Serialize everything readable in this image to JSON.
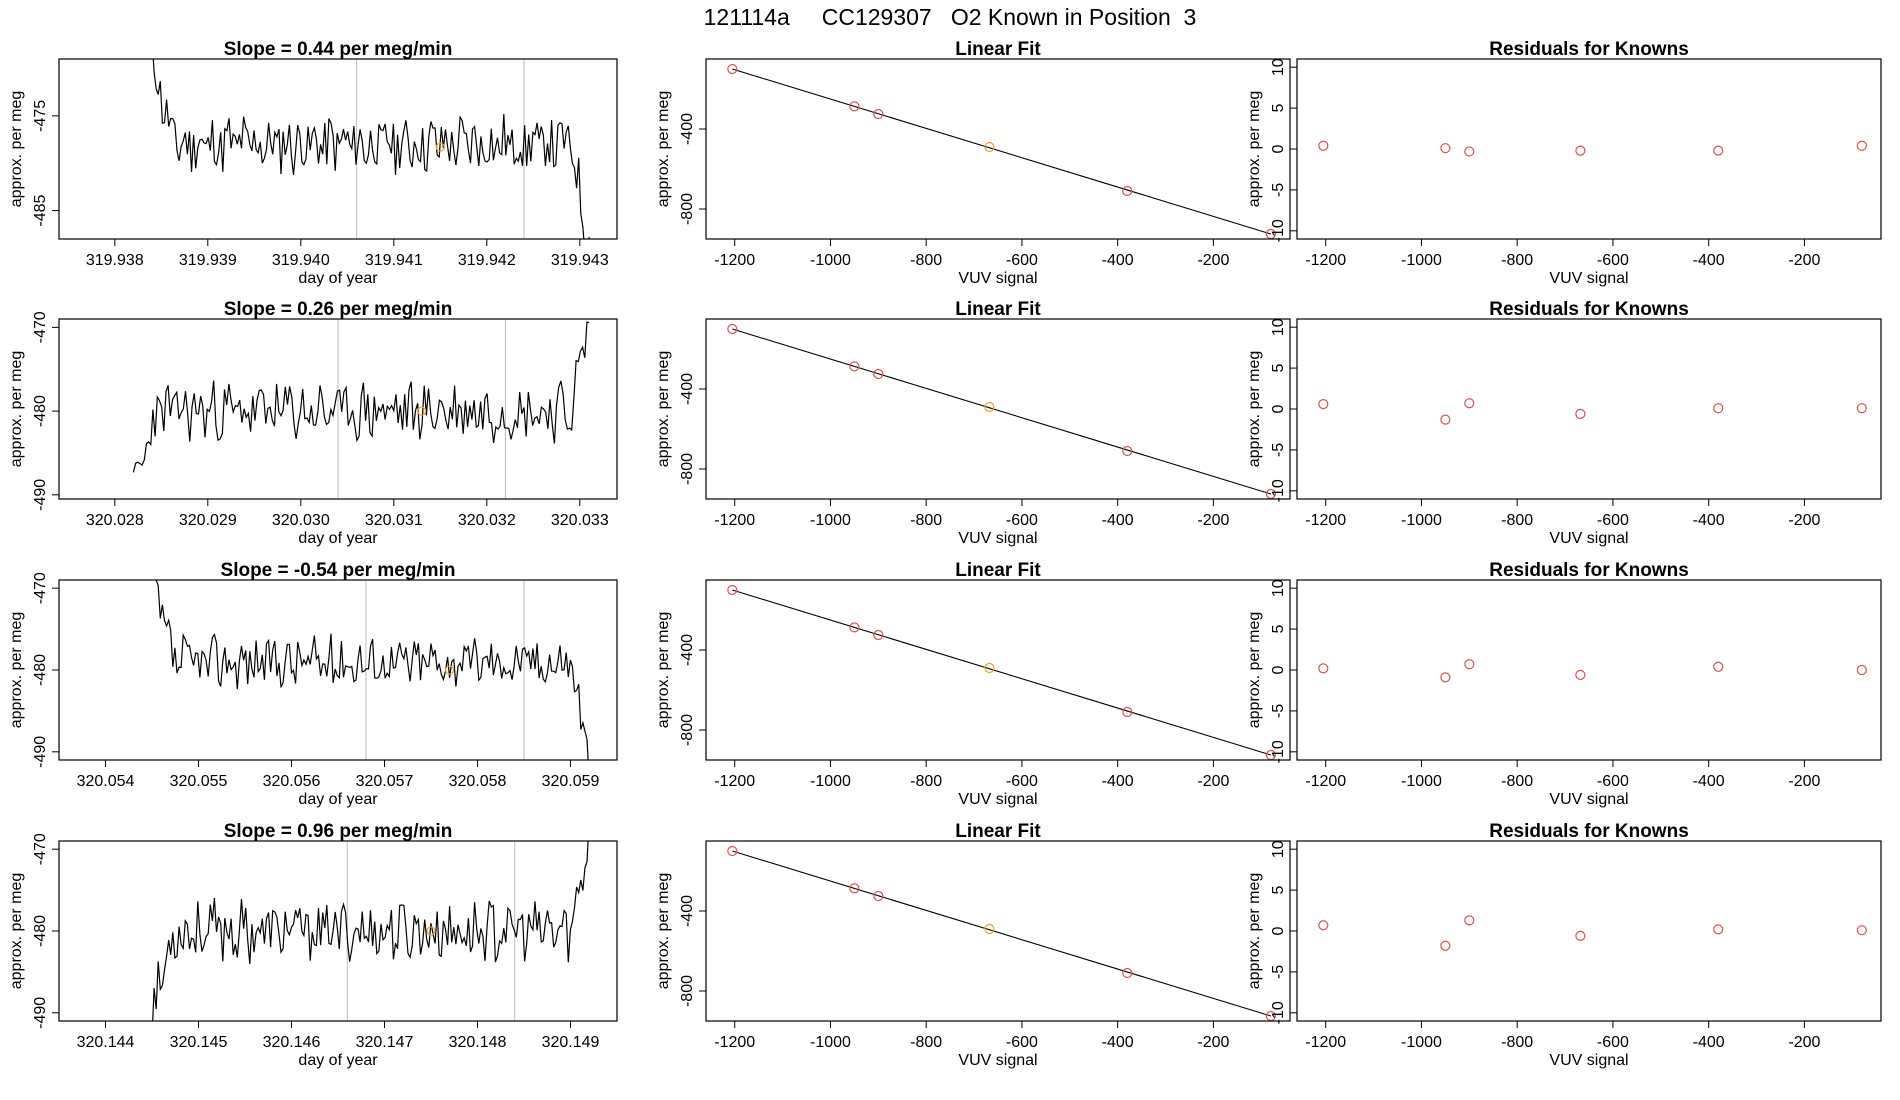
{
  "page": {
    "title": "121114a     CC129307   O2 Known in Position  3"
  },
  "colors": {
    "line": "#000000",
    "marker": "#d9534f",
    "highlight": "#f0a030",
    "vline": "#bdbdbd",
    "box": "#000000"
  },
  "chart_data": [
    {
      "type": "line",
      "row": 0,
      "col": 0,
      "title": "Slope =  0.44  per meg/min",
      "xlabel": "day of year",
      "ylabel": "approx. per meg",
      "xlim": [
        319.9374,
        319.9434
      ],
      "ylim": [
        -488.0,
        -469.0
      ],
      "xticks": [
        319.938,
        319.939,
        319.94,
        319.941,
        319.942,
        319.943
      ],
      "xtick_labels": [
        "319.938",
        "319.939",
        "319.940",
        "319.941",
        "319.942",
        "319.943"
      ],
      "yticks": [
        -475,
        -485
      ],
      "ytick_labels": [
        "-475",
        "-485"
      ],
      "vlines": [
        319.9406,
        319.9424
      ],
      "x_start": 319.9384,
      "x_end": 319.9431,
      "seed": 11,
      "level": -478.0,
      "noise": 2.0,
      "start_shift": 9.0,
      "end_shift": -11.0,
      "highlight": {
        "x": 319.9415,
        "y": -478.3
      }
    },
    {
      "type": "scatter",
      "row": 0,
      "col": 1,
      "title": "Linear Fit",
      "xlabel": "VUV signal",
      "ylabel": "approx. per meg",
      "xlim": [
        -1260,
        -40
      ],
      "ylim": [
        -950,
        -50
      ],
      "xticks": [
        -1200,
        -1000,
        -800,
        -600,
        -400,
        -200
      ],
      "xtick_labels": [
        "-1200",
        "-1000",
        "-800",
        "-600",
        "-400",
        "-200"
      ],
      "yticks": [
        -400,
        -800
      ],
      "ytick_labels": [
        "-400",
        "-800"
      ],
      "x": [
        -1205,
        -950,
        -900,
        -668,
        -380,
        -80
      ],
      "y": [
        -100,
        -287,
        -325,
        -490,
        -710,
        -925
      ],
      "highlight_index": 3,
      "fit_line": {
        "x": [
          -1205,
          -80
        ],
        "y": [
          -100,
          -925
        ]
      }
    },
    {
      "type": "scatter",
      "row": 0,
      "col": 2,
      "title": "Residuals for Knowns",
      "xlabel": "VUV signal",
      "ylabel": "approx. per meg",
      "xlim": [
        -1260,
        -40
      ],
      "ylim": [
        -11,
        11
      ],
      "xticks": [
        -1200,
        -1000,
        -800,
        -600,
        -400,
        -200
      ],
      "xtick_labels": [
        "-1200",
        "-1000",
        "-800",
        "-600",
        "-400",
        "-200"
      ],
      "yticks": [
        10,
        5,
        0,
        -5,
        -10
      ],
      "ytick_labels": [
        "10",
        "5",
        "0",
        "-5",
        "-10"
      ],
      "x": [
        -1205,
        -950,
        -900,
        -668,
        -380,
        -80
      ],
      "y": [
        0.4,
        0.1,
        -0.3,
        -0.2,
        -0.2,
        0.4
      ]
    },
    {
      "type": "line",
      "row": 1,
      "col": 0,
      "title": "Slope =  0.26  per meg/min",
      "xlabel": "day of year",
      "ylabel": "approx. per meg",
      "xlim": [
        320.0274,
        320.0334
      ],
      "ylim": [
        -490.5,
        -469.0
      ],
      "xticks": [
        320.028,
        320.029,
        320.03,
        320.031,
        320.032,
        320.033
      ],
      "xtick_labels": [
        "320.028",
        "320.029",
        "320.030",
        "320.031",
        "320.032",
        "320.033"
      ],
      "yticks": [
        -470,
        -480,
        -490
      ],
      "ytick_labels": [
        "-470",
        "-480",
        "-490"
      ],
      "vlines": [
        320.0304,
        320.0322
      ],
      "x_start": 320.0282,
      "x_end": 320.0331,
      "seed": 23,
      "level": -480.0,
      "noise": 2.2,
      "start_shift": -10.0,
      "end_shift": 11.0,
      "highlight": {
        "x": 320.0313,
        "y": -480.0
      }
    },
    {
      "type": "scatter",
      "row": 1,
      "col": 1,
      "title": "Linear Fit",
      "xlabel": "VUV signal",
      "ylabel": "approx. per meg",
      "xlim": [
        -1260,
        -40
      ],
      "ylim": [
        -950,
        -50
      ],
      "xticks": [
        -1200,
        -1000,
        -800,
        -600,
        -400,
        -200
      ],
      "xtick_labels": [
        "-1200",
        "-1000",
        "-800",
        "-600",
        "-400",
        "-200"
      ],
      "yticks": [
        -400,
        -800
      ],
      "ytick_labels": [
        "-400",
        "-800"
      ],
      "x": [
        -1205,
        -950,
        -900,
        -668,
        -380,
        -80
      ],
      "y": [
        -100,
        -287,
        -325,
        -490,
        -710,
        -925
      ],
      "highlight_index": 3,
      "fit_line": {
        "x": [
          -1205,
          -80
        ],
        "y": [
          -100,
          -925
        ]
      }
    },
    {
      "type": "scatter",
      "row": 1,
      "col": 2,
      "title": "Residuals for Knowns",
      "xlabel": "VUV signal",
      "ylabel": "approx. per meg",
      "xlim": [
        -1260,
        -40
      ],
      "ylim": [
        -11,
        11
      ],
      "xticks": [
        -1200,
        -1000,
        -800,
        -600,
        -400,
        -200
      ],
      "xtick_labels": [
        "-1200",
        "-1000",
        "-800",
        "-600",
        "-400",
        "-200"
      ],
      "yticks": [
        10,
        5,
        0,
        -5,
        -10
      ],
      "ytick_labels": [
        "10",
        "5",
        "0",
        "-5",
        "-10"
      ],
      "x": [
        -1205,
        -950,
        -900,
        -668,
        -380,
        -80
      ],
      "y": [
        0.6,
        -1.3,
        0.7,
        -0.6,
        0.1,
        0.1
      ]
    },
    {
      "type": "line",
      "row": 2,
      "col": 0,
      "title": "Slope =  -0.54  per meg/min",
      "xlabel": "day of year",
      "ylabel": "approx. per meg",
      "xlim": [
        320.0535,
        320.0595
      ],
      "ylim": [
        -491.0,
        -469.0
      ],
      "xticks": [
        320.054,
        320.055,
        320.056,
        320.057,
        320.058,
        320.059
      ],
      "xtick_labels": [
        "320.054",
        "320.055",
        "320.056",
        "320.057",
        "320.058",
        "320.059"
      ],
      "yticks": [
        -470,
        -480,
        -490
      ],
      "ytick_labels": [
        "-470",
        "-480",
        "-490"
      ],
      "vlines": [
        320.0568,
        320.0585
      ],
      "x_start": 320.0545,
      "x_end": 320.0592,
      "seed": 37,
      "level": -479.0,
      "noise": 2.0,
      "start_shift": 10.0,
      "end_shift": -12.0,
      "highlight": {
        "x": 320.0577,
        "y": -480.0
      }
    },
    {
      "type": "scatter",
      "row": 2,
      "col": 1,
      "title": "Linear Fit",
      "xlabel": "VUV signal",
      "ylabel": "approx. per meg",
      "xlim": [
        -1260,
        -40
      ],
      "ylim": [
        -950,
        -50
      ],
      "xticks": [
        -1200,
        -1000,
        -800,
        -600,
        -400,
        -200
      ],
      "xtick_labels": [
        "-1200",
        "-1000",
        "-800",
        "-600",
        "-400",
        "-200"
      ],
      "yticks": [
        -400,
        -800
      ],
      "ytick_labels": [
        "-400",
        "-800"
      ],
      "x": [
        -1205,
        -950,
        -900,
        -668,
        -380,
        -80
      ],
      "y": [
        -100,
        -287,
        -325,
        -490,
        -710,
        -925
      ],
      "highlight_index": 3,
      "fit_line": {
        "x": [
          -1205,
          -80
        ],
        "y": [
          -100,
          -925
        ]
      }
    },
    {
      "type": "scatter",
      "row": 2,
      "col": 2,
      "title": "Residuals for Knowns",
      "xlabel": "VUV signal",
      "ylabel": "approx. per meg",
      "xlim": [
        -1260,
        -40
      ],
      "ylim": [
        -11,
        11
      ],
      "xticks": [
        -1200,
        -1000,
        -800,
        -600,
        -400,
        -200
      ],
      "xtick_labels": [
        "-1200",
        "-1000",
        "-800",
        "-600",
        "-400",
        "-200"
      ],
      "yticks": [
        10,
        5,
        0,
        -5,
        -10
      ],
      "ytick_labels": [
        "10",
        "5",
        "0",
        "-5",
        "-10"
      ],
      "x": [
        -1205,
        -950,
        -900,
        -668,
        -380,
        -80
      ],
      "y": [
        0.2,
        -0.9,
        0.7,
        -0.6,
        0.4,
        0.0
      ]
    },
    {
      "type": "line",
      "row": 3,
      "col": 0,
      "title": "Slope =  0.96  per meg/min",
      "xlabel": "day of year",
      "ylabel": "approx. per meg",
      "xlim": [
        320.1435,
        320.1495
      ],
      "ylim": [
        -491.0,
        -469.0
      ],
      "xticks": [
        320.144,
        320.145,
        320.146,
        320.147,
        320.148,
        320.149
      ],
      "xtick_labels": [
        "320.144",
        "320.145",
        "320.146",
        "320.147",
        "320.148",
        "320.149"
      ],
      "yticks": [
        -470,
        -480,
        -490
      ],
      "ytick_labels": [
        "-470",
        "-480",
        "-490"
      ],
      "vlines": [
        320.1466,
        320.1484
      ],
      "x_start": 320.1445,
      "x_end": 320.1492,
      "seed": 53,
      "level": -480.0,
      "noise": 2.3,
      "start_shift": -10.0,
      "end_shift": 12.0,
      "highlight": {
        "x": 320.1475,
        "y": -480.0
      }
    },
    {
      "type": "scatter",
      "row": 3,
      "col": 1,
      "title": "Linear Fit",
      "xlabel": "VUV signal",
      "ylabel": "approx. per meg",
      "xlim": [
        -1260,
        -40
      ],
      "ylim": [
        -950,
        -50
      ],
      "xticks": [
        -1200,
        -1000,
        -800,
        -600,
        -400,
        -200
      ],
      "xtick_labels": [
        "-1200",
        "-1000",
        "-800",
        "-600",
        "-400",
        "-200"
      ],
      "yticks": [
        -400,
        -800
      ],
      "ytick_labels": [
        "-400",
        "-800"
      ],
      "x": [
        -1205,
        -950,
        -900,
        -668,
        -380,
        -80
      ],
      "y": [
        -100,
        -287,
        -325,
        -490,
        -710,
        -925
      ],
      "highlight_index": 3,
      "fit_line": {
        "x": [
          -1205,
          -80
        ],
        "y": [
          -100,
          -925
        ]
      }
    },
    {
      "type": "scatter",
      "row": 3,
      "col": 2,
      "title": "Residuals for Knowns",
      "xlabel": "VUV signal",
      "ylabel": "approx. per meg",
      "xlim": [
        -1260,
        -40
      ],
      "ylim": [
        -11,
        11
      ],
      "xticks": [
        -1200,
        -1000,
        -800,
        -600,
        -400,
        -200
      ],
      "xtick_labels": [
        "-1200",
        "-1000",
        "-800",
        "-600",
        "-400",
        "-200"
      ],
      "yticks": [
        10,
        5,
        0,
        -5,
        -10
      ],
      "ytick_labels": [
        "10",
        "5",
        "0",
        "-5",
        "-10"
      ],
      "x": [
        -1205,
        -950,
        -900,
        -668,
        -380,
        -80
      ],
      "y": [
        0.7,
        -1.8,
        1.3,
        -0.6,
        0.2,
        0.1
      ]
    }
  ]
}
